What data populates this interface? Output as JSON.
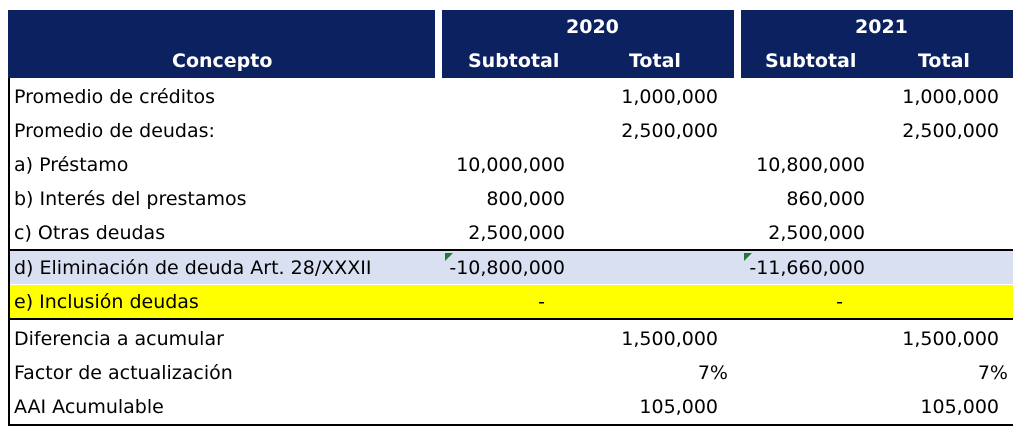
{
  "header": {
    "concepto": "Concepto",
    "year_2020": "2020",
    "year_2021": "2021",
    "subtotal": "Subtotal",
    "total": "Total"
  },
  "rows": [
    {
      "label": "Promedio de créditos",
      "sub2020": "",
      "tot2020": "1,000,000",
      "sub2021": "",
      "tot2021": "1,000,000"
    },
    {
      "label": "Promedio de deudas:",
      "sub2020": "",
      "tot2020": "2,500,000",
      "sub2021": "",
      "tot2021": "2,500,000"
    },
    {
      "label": "a) Préstamo",
      "sub2020": "10,000,000",
      "tot2020": "",
      "sub2021": "10,800,000",
      "tot2021": ""
    },
    {
      "label": "b) Interés del prestamos",
      "sub2020": "800,000",
      "tot2020": "",
      "sub2021": "860,000",
      "tot2021": ""
    },
    {
      "label": "c) Otras deudas",
      "sub2020": "2,500,000",
      "tot2020": "",
      "sub2021": "2,500,000",
      "tot2021": ""
    },
    {
      "label": "d) Eliminación de deuda Art. 28/XXXII",
      "sub2020": "-10,800,000",
      "tot2020": "",
      "sub2021": "-11,660,000",
      "tot2021": ""
    },
    {
      "label": "e) Inclusión deudas",
      "sub2020": "-",
      "tot2020": "",
      "sub2021": "-",
      "tot2021": ""
    },
    {
      "label": "Diferencia a acumular",
      "sub2020": "",
      "tot2020": "1,500,000",
      "sub2021": "",
      "tot2021": "1,500,000"
    },
    {
      "label": "Factor de actualización",
      "sub2020": "",
      "tot2020": "7%",
      "sub2021": "",
      "tot2021": "7%"
    },
    {
      "label": "AAI Acumulable",
      "sub2020": "",
      "tot2020": "105,000",
      "sub2021": "",
      "tot2021": "105,000"
    }
  ],
  "colors": {
    "header_bg": "#0b2160",
    "highlight_blue": "#d9e0f1",
    "highlight_yellow": "#ffff00"
  }
}
